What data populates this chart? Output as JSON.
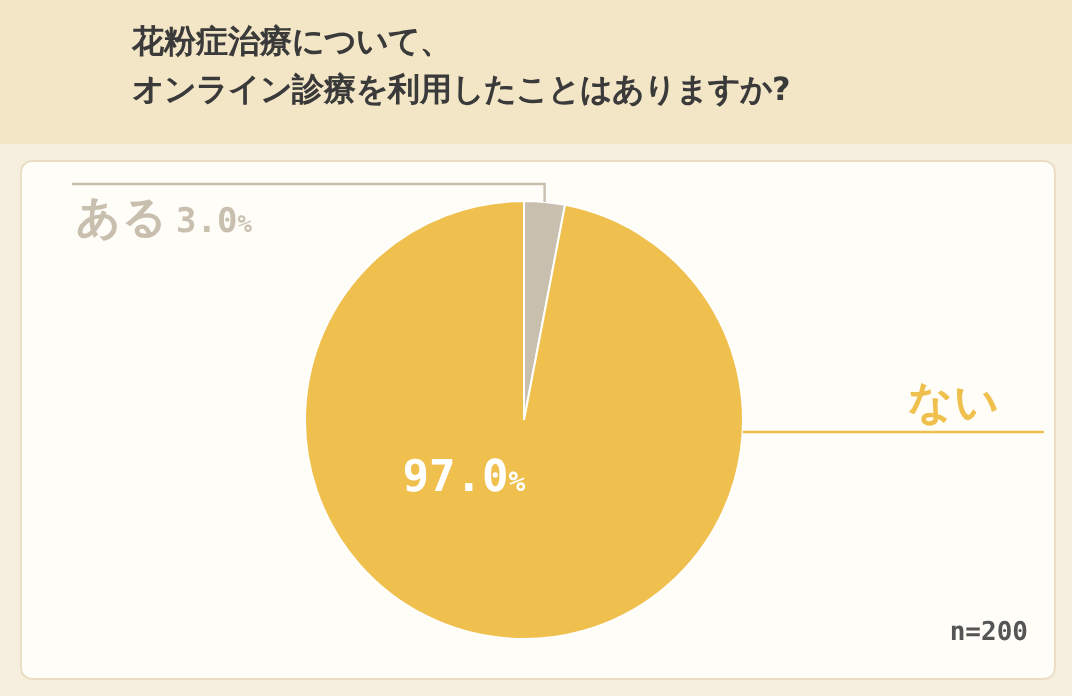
{
  "chart_data": {
    "type": "pie",
    "title": "花粉症治療について、オンライン診療を利用したことはありますか?",
    "categories": [
      "ある",
      "ない"
    ],
    "values": [
      3.0,
      97.0
    ],
    "colors": [
      "#c9bfae",
      "#f0c04e"
    ],
    "value_labels": [
      "3.0%",
      "97.0%"
    ],
    "legend": false,
    "annotations": [
      "n=200"
    ]
  }
}
